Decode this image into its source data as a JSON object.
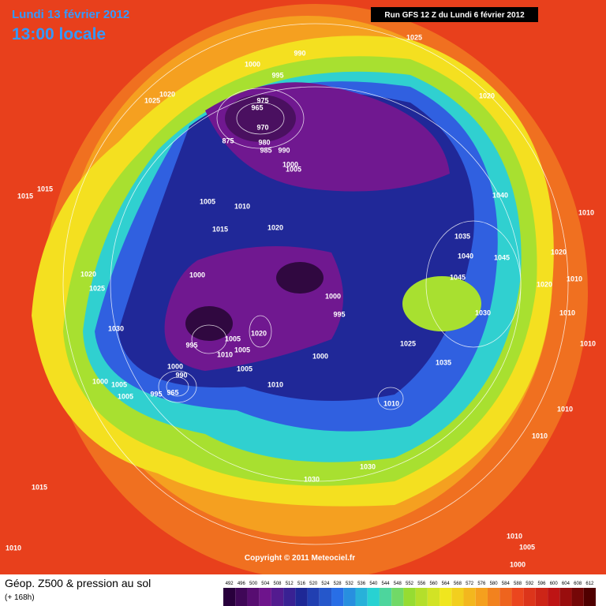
{
  "header": {
    "date": "Lundi 13 février 2012",
    "time": "13:00 locale",
    "run": "Run GFS 12 Z du Lundi 6 février 2012"
  },
  "footer": {
    "title": "Géop. Z500 & pression au sol",
    "subtitle": "(+ 168h)"
  },
  "copyright": "Copyright © 2011 Meteociel.fr",
  "colorbar": {
    "labels": [
      492,
      496,
      500,
      504,
      508,
      512,
      516,
      520,
      524,
      528,
      532,
      536,
      540,
      544,
      548,
      552,
      556,
      560,
      564,
      568,
      572,
      576,
      580,
      584,
      588,
      592,
      596,
      600,
      604,
      608,
      612
    ]
  },
  "map": {
    "pressure_labels": [
      990,
      1000,
      995,
      975,
      965,
      970,
      875,
      980,
      985,
      990,
      1000,
      1005,
      1025,
      1020,
      1025,
      1020,
      1015,
      1015,
      1005,
      1010,
      1015,
      1020,
      1040,
      1010,
      1035,
      1040,
      1045,
      1020,
      1045,
      1020,
      1010,
      1020,
      1025,
      1000,
      1000,
      995,
      1030,
      1010,
      1030,
      1020,
      1005,
      1005,
      995,
      1010,
      1025,
      1010,
      1000,
      1000,
      990,
      1005,
      1035,
      1000,
      1005,
      1010,
      995,
      965,
      1005,
      1010,
      1010,
      1010,
      1030,
      1030,
      1015,
      1010,
      1010,
      1005,
      1000
    ]
  }
}
